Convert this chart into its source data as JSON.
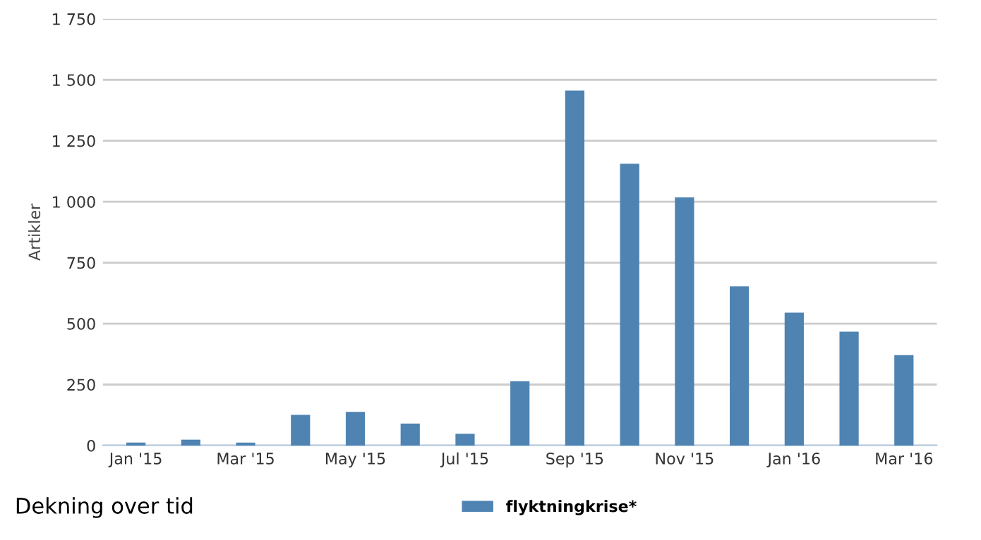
{
  "chart_data": {
    "type": "bar",
    "title": "Dekning over tid",
    "ylabel": "Artikler",
    "categories": [
      "Jan '15",
      null,
      "Mar '15",
      null,
      "May '15",
      null,
      "Jul '15",
      null,
      "Sep '15",
      null,
      "Nov '15",
      null,
      "Jan '16",
      null,
      "Mar '16"
    ],
    "series": [
      {
        "name": "flyktningkrise*",
        "color": "#4f83b1",
        "values": [
          12,
          24,
          12,
          126,
          138,
          90,
          48,
          264,
          1456,
          1156,
          1018,
          653,
          545,
          467,
          371
        ]
      }
    ],
    "ylim": [
      0,
      1750
    ],
    "yticks": [
      0,
      250,
      500,
      750,
      {
        "value": 1000,
        "label": "1 000"
      },
      {
        "value": 1250,
        "label": "1 250"
      },
      {
        "value": 1500,
        "label": "1 500"
      },
      {
        "value": 1750,
        "label": "1 750"
      }
    ],
    "grid": "y",
    "legend": "bottom"
  }
}
